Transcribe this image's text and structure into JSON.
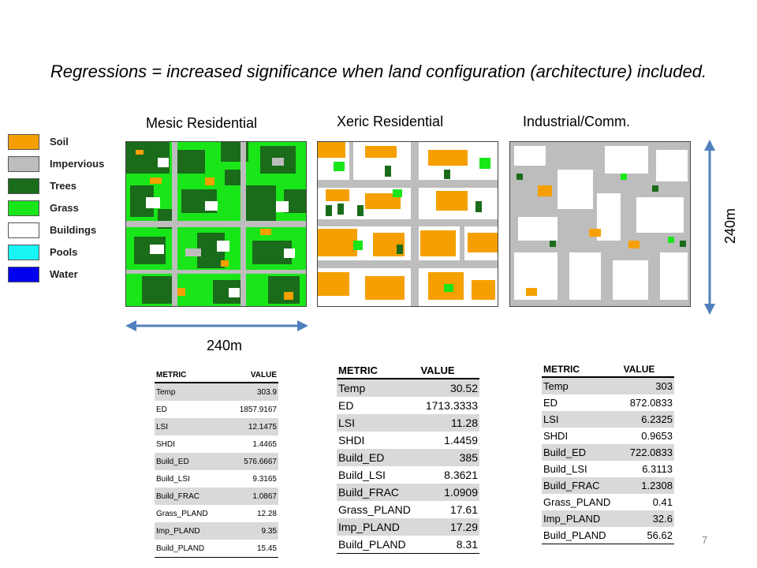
{
  "slide": {
    "title": "Regressions = increased significance when land configuration (architecture) included.",
    "page_number": "7"
  },
  "legend": {
    "items": [
      {
        "label": "Soil",
        "color": "#f5a000"
      },
      {
        "label": "Impervious",
        "color": "#bdbdbd"
      },
      {
        "label": "Trees",
        "color": "#1a6b1a"
      },
      {
        "label": "Grass",
        "color": "#19e619"
      },
      {
        "label": "Buildings",
        "color": "#ffffff"
      },
      {
        "label": "Pools",
        "color": "#19f5f5"
      },
      {
        "label": "Water",
        "color": "#0000ee"
      }
    ]
  },
  "maps": [
    {
      "caption": "Mesic Residential"
    },
    {
      "caption": "Xeric Residential"
    },
    {
      "caption": "Industrial/Comm."
    }
  ],
  "dimensions": {
    "horizontal": "240m",
    "vertical": "240m"
  },
  "tables": [
    {
      "header": {
        "metric": "METRIC",
        "value": "VALUE"
      },
      "rows": [
        {
          "metric": "Temp",
          "value": "303.9"
        },
        {
          "metric": "ED",
          "value": "1857.9167"
        },
        {
          "metric": "LSI",
          "value": "12.1475"
        },
        {
          "metric": "SHDI",
          "value": "1.4465"
        },
        {
          "metric": "Build_ED",
          "value": "576.6667"
        },
        {
          "metric": "Build_LSI",
          "value": "9.3165"
        },
        {
          "metric": "Build_FRAC",
          "value": "1.0867"
        },
        {
          "metric": "Grass_PLAND",
          "value": "12.28"
        },
        {
          "metric": "Imp_PLAND",
          "value": "9.35"
        },
        {
          "metric": "Build_PLAND",
          "value": "15.45"
        }
      ]
    },
    {
      "header": {
        "metric": "METRIC",
        "value": "VALUE"
      },
      "rows": [
        {
          "metric": "Temp",
          "value": "30.52"
        },
        {
          "metric": "ED",
          "value": "1713.3333"
        },
        {
          "metric": "LSI",
          "value": "11.28"
        },
        {
          "metric": "SHDI",
          "value": "1.4459"
        },
        {
          "metric": "Build_ED",
          "value": "385"
        },
        {
          "metric": "Build_LSI",
          "value": "8.3621"
        },
        {
          "metric": "Build_FRAC",
          "value": "1.0909"
        },
        {
          "metric": "Grass_PLAND",
          "value": "17.61"
        },
        {
          "metric": "Imp_PLAND",
          "value": "17.29"
        },
        {
          "metric": "Build_PLAND",
          "value": "8.31"
        }
      ]
    },
    {
      "header": {
        "metric": "METRIC",
        "value": "VALUE"
      },
      "rows": [
        {
          "metric": "Temp",
          "value": "303"
        },
        {
          "metric": "ED",
          "value": "872.0833"
        },
        {
          "metric": "LSI",
          "value": "6.2325"
        },
        {
          "metric": "SHDI",
          "value": "0.9653"
        },
        {
          "metric": "Build_ED",
          "value": "722.0833"
        },
        {
          "metric": "Build_LSI",
          "value": "6.3113"
        },
        {
          "metric": "Build_FRAC",
          "value": "1.2308"
        },
        {
          "metric": "Grass_PLAND",
          "value": "0.41"
        },
        {
          "metric": "Imp_PLAND",
          "value": "32.6"
        },
        {
          "metric": "Build_PLAND",
          "value": "56.62"
        }
      ]
    }
  ]
}
